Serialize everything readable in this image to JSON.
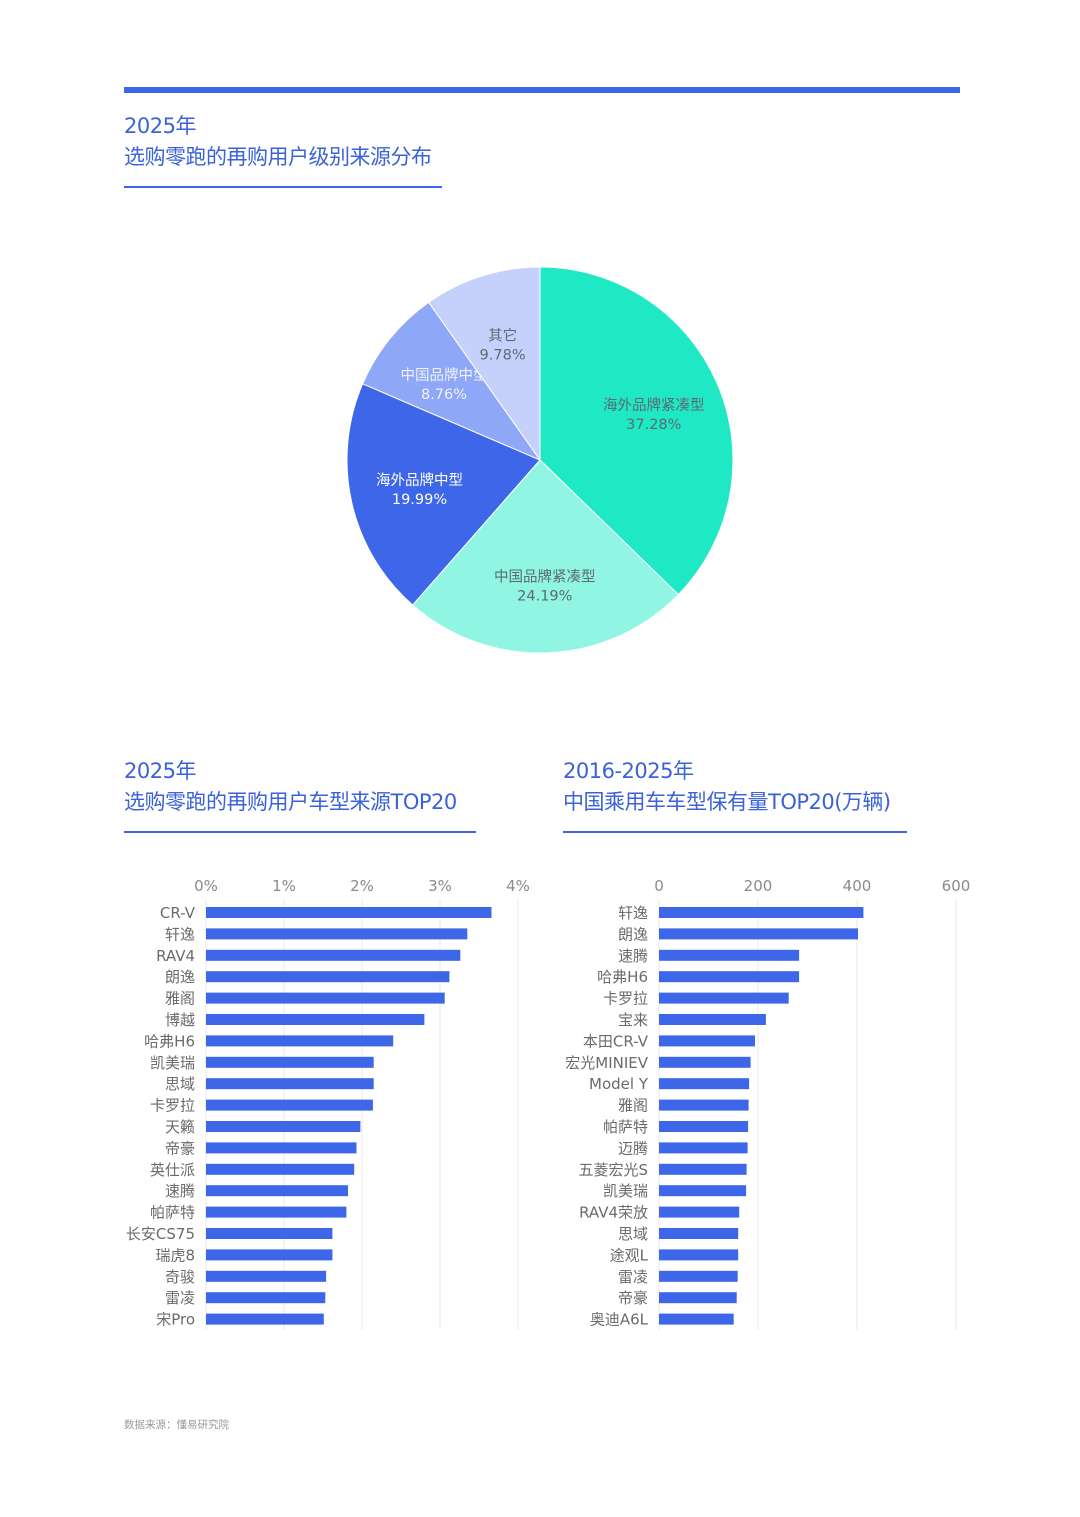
{
  "colors": {
    "accent": "#3d66e8",
    "bar": "#3d66e8",
    "grid": "#e8e8e8",
    "pie": [
      "#1ee9c4",
      "#90f5e2",
      "#3d66e8",
      "#8ea7f6",
      "#c5d1fb"
    ]
  },
  "section1": {
    "year": "2025年",
    "title": "选购零跑的再购用户级别来源分布"
  },
  "section2": {
    "year": "2025年",
    "title": "选购零跑的再购用户车型来源TOP20"
  },
  "section3": {
    "year": "2016-2025年",
    "title": "中国乘用车车型保有量TOP20(万辆)"
  },
  "footer": {
    "source": "数据来源：懂易研究院"
  },
  "chart_data": [
    {
      "type": "pie",
      "slices": [
        {
          "label": "海外品牌紧凑型",
          "value": 37.28,
          "display": "37.28%"
        },
        {
          "label": "中国品牌紧凑型",
          "value": 24.19,
          "display": "24.19%"
        },
        {
          "label": "海外品牌中型",
          "value": 19.99,
          "display": "19.99%"
        },
        {
          "label": "中国品牌中型",
          "value": 8.76,
          "display": "8.76%"
        },
        {
          "label": "其它",
          "value": 9.78,
          "display": "9.78%"
        }
      ]
    },
    {
      "type": "bar",
      "orientation": "horizontal",
      "categories": [
        "CR-V",
        "轩逸",
        "RAV4",
        "朗逸",
        "雅阁",
        "博越",
        "哈弗H6",
        "凯美瑞",
        "思域",
        "卡罗拉",
        "天籁",
        "帝豪",
        "英仕派",
        "速腾",
        "帕萨特",
        "长安CS75",
        "瑞虎8",
        "奇骏",
        "雷凌",
        "宋Pro"
      ],
      "values": [
        3.66,
        3.35,
        3.26,
        3.12,
        3.06,
        2.8,
        2.4,
        2.15,
        2.15,
        2.14,
        1.98,
        1.93,
        1.9,
        1.82,
        1.8,
        1.62,
        1.62,
        1.54,
        1.53,
        1.51
      ],
      "xlim": [
        0,
        4
      ],
      "ticks": [
        "0%",
        "1%",
        "2%",
        "3%",
        "4%"
      ]
    },
    {
      "type": "bar",
      "orientation": "horizontal",
      "categories": [
        "轩逸",
        "朗逸",
        "速腾",
        "哈弗H6",
        "卡罗拉",
        "宝来",
        "本田CR-V",
        "宏光MINIEV",
        "Model Y",
        "雅阁",
        "帕萨特",
        "迈腾",
        "五菱宏光S",
        "凯美瑞",
        "RAV4荣放",
        "思域",
        "途观L",
        "雷凌",
        "帝豪",
        "奥迪A6L"
      ],
      "values": [
        413,
        402,
        283,
        283,
        262,
        216,
        194,
        185,
        182,
        181,
        180,
        179,
        177,
        176,
        162,
        160,
        160,
        159,
        157,
        151
      ],
      "xlim": [
        0,
        600
      ],
      "ticks": [
        "0",
        "200",
        "400",
        "600"
      ]
    }
  ]
}
